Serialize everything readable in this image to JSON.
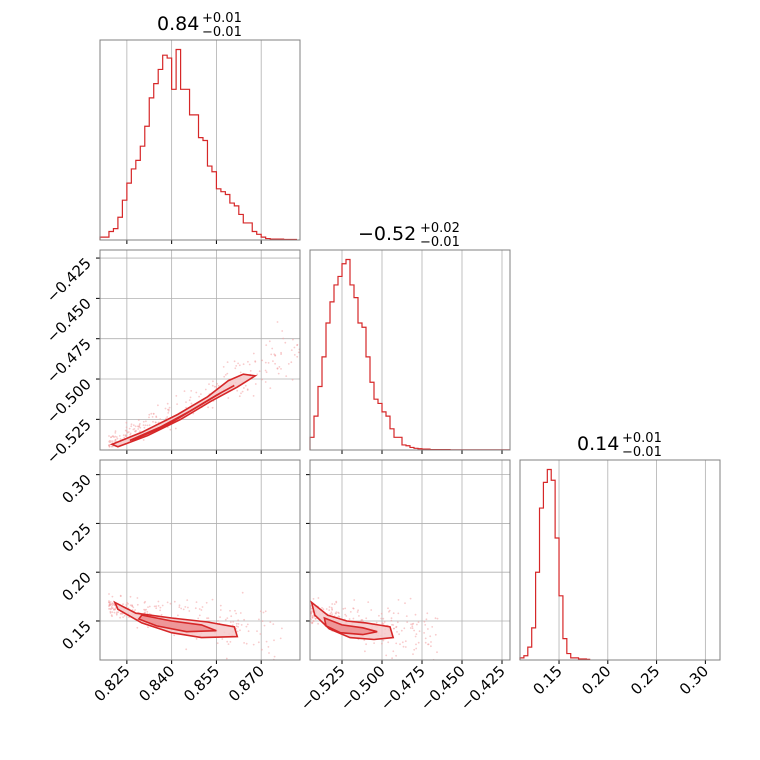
{
  "figure_type": "corner plot",
  "colors": {
    "accent": "#d62728",
    "fill_light": "#f6c9ca",
    "fill_mid": "#ec8d8f",
    "scatter": "#f2a0a2",
    "grid": "#b0b0b0",
    "frame": "#808080"
  },
  "chart_data": [
    {
      "id": "hist-p0",
      "type": "histogram",
      "title": {
        "value": "0.84",
        "plus": "+0.01",
        "minus": "−0.01"
      },
      "xlim": [
        0.816,
        0.883
      ],
      "xticks": [
        0.825,
        0.84,
        0.855,
        0.87
      ],
      "xtick_labels": [],
      "bins": [
        [
          0.816,
          1
        ],
        [
          0.8175,
          1
        ],
        [
          0.819,
          3
        ],
        [
          0.8205,
          4
        ],
        [
          0.822,
          8
        ],
        [
          0.8235,
          14
        ],
        [
          0.825,
          20
        ],
        [
          0.8265,
          25
        ],
        [
          0.828,
          28
        ],
        [
          0.8295,
          33
        ],
        [
          0.831,
          40
        ],
        [
          0.8325,
          50
        ],
        [
          0.834,
          55
        ],
        [
          0.8355,
          60
        ],
        [
          0.837,
          65
        ],
        [
          0.8385,
          64
        ],
        [
          0.84,
          53
        ],
        [
          0.8415,
          67
        ],
        [
          0.843,
          53
        ],
        [
          0.8445,
          53
        ],
        [
          0.846,
          44
        ],
        [
          0.8475,
          44
        ],
        [
          0.849,
          36
        ],
        [
          0.8505,
          35
        ],
        [
          0.852,
          26
        ],
        [
          0.8535,
          24
        ],
        [
          0.855,
          18
        ],
        [
          0.8565,
          17
        ],
        [
          0.858,
          16
        ],
        [
          0.8595,
          13
        ],
        [
          0.861,
          12
        ],
        [
          0.8625,
          9
        ],
        [
          0.864,
          6
        ],
        [
          0.8655,
          6
        ],
        [
          0.867,
          3
        ],
        [
          0.8685,
          2
        ],
        [
          0.87,
          1
        ],
        [
          0.8715,
          0.5
        ],
        [
          0.873,
          0.3
        ],
        [
          0.8745,
          0.3
        ],
        [
          0.876,
          0.3
        ],
        [
          0.8775,
          0.2
        ],
        [
          0.879,
          0.2
        ],
        [
          0.8805,
          0.2
        ]
      ],
      "bin_width": 0.0015
    },
    {
      "id": "hist-p1",
      "type": "histogram",
      "title": {
        "value": "−0.52",
        "plus": "+0.02",
        "minus": "−0.01"
      },
      "xlim": [
        -0.545,
        -0.42
      ],
      "xticks": [
        -0.525,
        -0.5,
        -0.475,
        -0.45,
        -0.425
      ],
      "xtick_labels": [],
      "bins": [
        [
          -0.545,
          3
        ],
        [
          -0.5425,
          8
        ],
        [
          -0.54,
          15
        ],
        [
          -0.5375,
          22
        ],
        [
          -0.535,
          30
        ],
        [
          -0.5325,
          35
        ],
        [
          -0.53,
          39
        ],
        [
          -0.5275,
          41
        ],
        [
          -0.525,
          44
        ],
        [
          -0.5225,
          45
        ],
        [
          -0.52,
          39
        ],
        [
          -0.5175,
          36
        ],
        [
          -0.515,
          30
        ],
        [
          -0.5125,
          29
        ],
        [
          -0.51,
          22
        ],
        [
          -0.5075,
          16
        ],
        [
          -0.505,
          12
        ],
        [
          -0.5025,
          11
        ],
        [
          -0.5,
          9
        ],
        [
          -0.4975,
          8
        ],
        [
          -0.495,
          5
        ],
        [
          -0.4925,
          3
        ],
        [
          -0.49,
          3
        ],
        [
          -0.4875,
          1.2
        ],
        [
          -0.485,
          1
        ],
        [
          -0.4825,
          0.6
        ],
        [
          -0.48,
          0.4
        ],
        [
          -0.4775,
          0.3
        ],
        [
          -0.475,
          0.2
        ],
        [
          -0.4725,
          0.2
        ],
        [
          -0.47,
          0.1
        ],
        [
          -0.4675,
          0.1
        ],
        [
          -0.465,
          0.1
        ],
        [
          -0.4625,
          0.1
        ],
        [
          -0.46,
          0.1
        ],
        [
          -0.4575,
          0.05
        ],
        [
          -0.455,
          0.05
        ],
        [
          -0.4525,
          0.05
        ],
        [
          -0.45,
          0.05
        ],
        [
          -0.4475,
          0.05
        ],
        [
          -0.445,
          0.05
        ],
        [
          -0.4425,
          0.05
        ],
        [
          -0.44,
          0.05
        ],
        [
          -0.4375,
          0.05
        ],
        [
          -0.435,
          0.05
        ],
        [
          -0.4325,
          0.05
        ],
        [
          -0.43,
          0.05
        ],
        [
          -0.4275,
          0.05
        ],
        [
          -0.425,
          0.05
        ],
        [
          -0.4225,
          0.05
        ]
      ],
      "bin_width": 0.0025
    },
    {
      "id": "hist-p2",
      "type": "histogram",
      "title": {
        "value": "0.14",
        "plus": "+0.01",
        "minus": "−0.01"
      },
      "xlim": [
        0.11,
        0.315
      ],
      "xticks": [
        0.15,
        0.2,
        0.25,
        0.3
      ],
      "xtick_labels": [
        "0.15",
        "0.20",
        "0.25",
        "0.30"
      ],
      "bins": [
        [
          0.11,
          1
        ],
        [
          0.114,
          2
        ],
        [
          0.118,
          6
        ],
        [
          0.122,
          15
        ],
        [
          0.126,
          41
        ],
        [
          0.13,
          71
        ],
        [
          0.134,
          83
        ],
        [
          0.138,
          89
        ],
        [
          0.142,
          84
        ],
        [
          0.146,
          57
        ],
        [
          0.15,
          30
        ],
        [
          0.154,
          10
        ],
        [
          0.158,
          3
        ],
        [
          0.162,
          1
        ],
        [
          0.166,
          1
        ],
        [
          0.17,
          0.5
        ],
        [
          0.174,
          0.5
        ],
        [
          0.178,
          0.3
        ]
      ],
      "bin_width": 0.004
    },
    {
      "id": "scatter-p0-p1",
      "type": "scatter",
      "xlim": [
        0.816,
        0.883
      ],
      "ylim": [
        -0.544,
        -0.42
      ],
      "xticks": [
        0.825,
        0.84,
        0.855,
        0.87
      ],
      "yticks": [
        -0.425,
        -0.45,
        -0.475,
        -0.5,
        -0.525
      ],
      "ytick_labels": [
        "−0.425",
        "−0.450",
        "−0.475",
        "−0.500",
        "−0.525"
      ],
      "xtick_labels": [],
      "contour_outer": [
        [
          0.82,
          -0.5405
        ],
        [
          0.83,
          -0.533
        ],
        [
          0.842,
          -0.522
        ],
        [
          0.852,
          -0.511
        ],
        [
          0.859,
          -0.501
        ],
        [
          0.864,
          -0.497
        ],
        [
          0.868,
          -0.498
        ],
        [
          0.862,
          -0.505
        ],
        [
          0.853,
          -0.514
        ],
        [
          0.843,
          -0.525
        ],
        [
          0.832,
          -0.535
        ],
        [
          0.822,
          -0.542
        ]
      ],
      "contour_inner": [
        [
          0.826,
          -0.538
        ],
        [
          0.836,
          -0.53
        ],
        [
          0.846,
          -0.52
        ],
        [
          0.855,
          -0.51
        ],
        [
          0.861,
          -0.504
        ],
        [
          0.857,
          -0.508
        ],
        [
          0.848,
          -0.518
        ],
        [
          0.838,
          -0.529
        ],
        [
          0.828,
          -0.537
        ]
      ],
      "scatter_range": {
        "x": [
          0.819,
          0.883
        ],
        "slope": 0.95,
        "intercept": -1.3185,
        "spread": 0.006
      }
    },
    {
      "id": "scatter-p0-p2",
      "type": "scatter",
      "xlim": [
        0.816,
        0.883
      ],
      "ylim": [
        0.11,
        0.315
      ],
      "xticks": [
        0.825,
        0.84,
        0.855,
        0.87
      ],
      "yticks": [
        0.15,
        0.2,
        0.25,
        0.3
      ],
      "ytick_labels": [
        "0.15",
        "0.20",
        "0.25",
        "0.30"
      ],
      "xtick_labels": [
        "0.825",
        "0.840",
        "0.855",
        "0.870"
      ],
      "contour_outer": [
        [
          0.821,
          0.169
        ],
        [
          0.828,
          0.158
        ],
        [
          0.84,
          0.153
        ],
        [
          0.852,
          0.149
        ],
        [
          0.861,
          0.144
        ],
        [
          0.862,
          0.134
        ],
        [
          0.85,
          0.133
        ],
        [
          0.84,
          0.138
        ],
        [
          0.83,
          0.148
        ],
        [
          0.822,
          0.162
        ]
      ],
      "contour_inner": [
        [
          0.83,
          0.156
        ],
        [
          0.84,
          0.15
        ],
        [
          0.85,
          0.146
        ],
        [
          0.855,
          0.14
        ],
        [
          0.845,
          0.139
        ],
        [
          0.835,
          0.145
        ],
        [
          0.829,
          0.152
        ]
      ],
      "scatter_range": {
        "x": [
          0.819,
          0.877
        ],
        "slope": -0.55,
        "intercept": 0.615,
        "spread": 0.012
      }
    },
    {
      "id": "scatter-p1-p2",
      "type": "scatter",
      "xlim": [
        -0.545,
        -0.42
      ],
      "ylim": [
        0.11,
        0.315
      ],
      "xticks": [
        -0.525,
        -0.5,
        -0.475,
        -0.45,
        -0.425
      ],
      "yticks": [
        0.15,
        0.2,
        0.25,
        0.3
      ],
      "ytick_labels": [],
      "xtick_labels": [
        "−0.525",
        "−0.500",
        "−0.475",
        "−0.450",
        "−0.425"
      ],
      "contour_outer": [
        [
          -0.544,
          0.169
        ],
        [
          -0.534,
          0.156
        ],
        [
          -0.522,
          0.15
        ],
        [
          -0.51,
          0.148
        ],
        [
          -0.495,
          0.144
        ],
        [
          -0.493,
          0.133
        ],
        [
          -0.505,
          0.131
        ],
        [
          -0.52,
          0.133
        ],
        [
          -0.533,
          0.142
        ],
        [
          -0.542,
          0.156
        ]
      ],
      "contour_inner": [
        [
          -0.536,
          0.153
        ],
        [
          -0.525,
          0.146
        ],
        [
          -0.512,
          0.143
        ],
        [
          -0.503,
          0.139
        ],
        [
          -0.512,
          0.136
        ],
        [
          -0.526,
          0.138
        ],
        [
          -0.535,
          0.145
        ]
      ],
      "scatter_range": {
        "x": [
          -0.545,
          -0.465
        ],
        "slope": -0.3,
        "intercept": -0.006,
        "spread": 0.012
      }
    }
  ]
}
